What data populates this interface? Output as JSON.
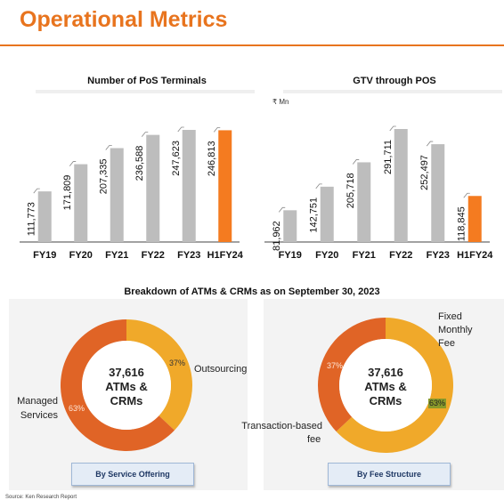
{
  "title": "Operational Metrics",
  "chart_data": [
    {
      "type": "bar",
      "title": "Number of PoS Terminals",
      "categories": [
        "FY19",
        "FY20",
        "FY21",
        "FY22",
        "FY23",
        "H1FY24"
      ],
      "values": [
        111773,
        171809,
        207335,
        236588,
        247623,
        246813
      ],
      "value_labels": [
        "111,773",
        "171,809",
        "207,335",
        "236,588",
        "247,623",
        "246,813"
      ],
      "colors": [
        "#bdbdbd",
        "#bdbdbd",
        "#bdbdbd",
        "#bdbdbd",
        "#bdbdbd",
        "#f47b20"
      ]
    },
    {
      "type": "bar",
      "title": "GTV through POS",
      "unit": "₹ Mn",
      "categories": [
        "FY19",
        "FY20",
        "FY21",
        "FY22",
        "FY23",
        "H1FY24"
      ],
      "values": [
        81962,
        142751,
        205718,
        291711,
        252497,
        118845
      ],
      "value_labels": [
        "81,962",
        "142,751",
        "205,718",
        "291,711",
        "252,497",
        "118,845"
      ],
      "colors": [
        "#bdbdbd",
        "#bdbdbd",
        "#bdbdbd",
        "#bdbdbd",
        "#bdbdbd",
        "#f47b20"
      ]
    },
    {
      "type": "pie",
      "title": "Breakdown of ATMs & CRMs as on September 30, 2023",
      "subtitle": "By Service Offering",
      "center_text": [
        "37,616",
        "ATMs &",
        "CRMs"
      ],
      "slices": [
        {
          "label": "Outsourcing",
          "value": 37,
          "pct_label": "37%",
          "color": "#f0a92a"
        },
        {
          "label": "Managed Services",
          "value": 63,
          "pct_label": "63%",
          "color": "#e06426"
        }
      ]
    },
    {
      "type": "pie",
      "subtitle": "By Fee Structure",
      "center_text": [
        "37,616",
        "ATMs &",
        "CRMs"
      ],
      "slices": [
        {
          "label": "Fixed Monthly Fee",
          "value": 37,
          "pct_label": "37%",
          "color": "#e06426"
        },
        {
          "label": "Transaction-based fee",
          "value": 63,
          "pct_label": "63%",
          "color": "#f0a92a"
        }
      ]
    }
  ],
  "section_title": "Breakdown of ATMs & CRMs as on September 30, 2023",
  "labels": {
    "outsourcing": "Outsourcing",
    "managed_1": "Managed",
    "managed_2": "Services",
    "fixed_1": "Fixed",
    "fixed_2": "Monthly",
    "fixed_3": "Fee",
    "txn_1": "Transaction-based",
    "txn_2": "fee"
  },
  "buttons": {
    "left": "By Service Offering",
    "right": "By Fee Structure"
  },
  "footnote": "Source: Ken Research Report"
}
